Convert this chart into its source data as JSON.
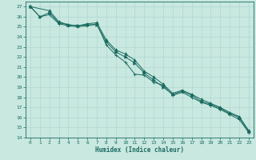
{
  "xlabel": "Humidex (Indice chaleur)",
  "background_color": "#c8e8e0",
  "grid_color": "#b0d8d0",
  "line_color": "#1a6a60",
  "xlim": [
    -0.5,
    23.5
  ],
  "ylim": [
    14,
    27.5
  ],
  "xticks": [
    0,
    1,
    2,
    3,
    4,
    5,
    6,
    7,
    8,
    9,
    10,
    11,
    12,
    13,
    14,
    15,
    16,
    17,
    18,
    19,
    20,
    21,
    22,
    23
  ],
  "yticks": [
    14,
    15,
    16,
    17,
    18,
    19,
    20,
    21,
    22,
    23,
    24,
    25,
    26,
    27
  ],
  "series": [
    {
      "x": [
        0,
        1,
        2,
        3,
        4,
        5,
        6,
        7,
        8,
        9,
        10,
        11,
        12,
        13,
        14,
        15,
        16,
        17,
        18,
        19,
        20,
        21,
        22,
        23
      ],
      "y": [
        27,
        26,
        26.2,
        25.3,
        25.1,
        25.0,
        25.1,
        25.3,
        23.2,
        22.2,
        21.5,
        20.3,
        20.2,
        19.5,
        19.2,
        18.2,
        18.5,
        18.0,
        17.5,
        17.2,
        16.8,
        16.3,
        15.8,
        14.5
      ],
      "marker": "+"
    },
    {
      "x": [
        0,
        2,
        3,
        4,
        5,
        6,
        7,
        8,
        9,
        10,
        11,
        12,
        13,
        14,
        15,
        16,
        17,
        18,
        19,
        20,
        21,
        22,
        23
      ],
      "y": [
        27,
        26.6,
        25.5,
        25.2,
        25.1,
        25.3,
        25.4,
        23.7,
        22.7,
        22.3,
        21.7,
        20.6,
        20.0,
        19.3,
        18.4,
        18.7,
        18.3,
        17.8,
        17.4,
        17.0,
        16.5,
        16.1,
        14.7
      ],
      "marker": "^"
    },
    {
      "x": [
        0,
        1,
        2,
        3,
        4,
        5,
        6,
        7,
        8,
        9,
        10,
        11,
        12,
        13,
        14,
        15,
        16,
        17,
        18,
        19,
        20,
        21,
        22,
        23
      ],
      "y": [
        27,
        26,
        26.4,
        25.4,
        25.2,
        25.1,
        25.2,
        25.2,
        23.5,
        22.5,
        22.0,
        21.4,
        20.4,
        19.7,
        19.0,
        18.3,
        18.6,
        18.2,
        17.6,
        17.3,
        16.9,
        16.4,
        16.0,
        14.6
      ],
      "marker": ">"
    }
  ]
}
